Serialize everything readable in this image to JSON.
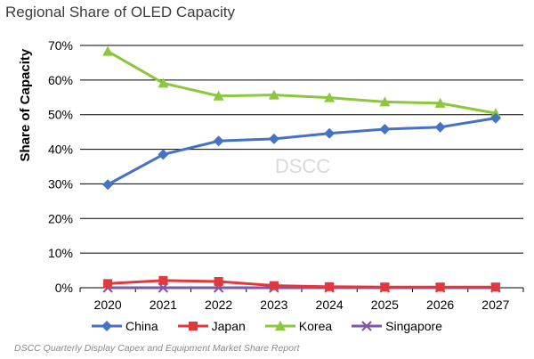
{
  "chart_data": {
    "type": "line",
    "title": "Regional Share of OLED Capacity",
    "ylabel": "Share of Capacity",
    "xlabel": "",
    "categories": [
      "2020",
      "2021",
      "2022",
      "2023",
      "2024",
      "2025",
      "2026",
      "2027"
    ],
    "ylim": [
      0,
      70
    ],
    "yticks": [
      "0%",
      "10%",
      "20%",
      "30%",
      "40%",
      "50%",
      "60%",
      "70%"
    ],
    "grid": true,
    "legend_position": "bottom",
    "watermark": "DSCC",
    "series": [
      {
        "name": "China",
        "color": "#4472C4",
        "marker": "diamond",
        "values": [
          29.8,
          38.5,
          42.4,
          43.0,
          44.6,
          45.8,
          46.4,
          49.0
        ]
      },
      {
        "name": "Japan",
        "color": "#E0383D",
        "marker": "square",
        "values": [
          1.2,
          2.1,
          1.8,
          0.6,
          0.3,
          0.2,
          0.2,
          0.2
        ]
      },
      {
        "name": "Korea",
        "color": "#8DC63F",
        "marker": "triangle",
        "values": [
          68.3,
          59.1,
          55.4,
          55.7,
          54.9,
          53.7,
          53.3,
          50.4
        ]
      },
      {
        "name": "Singapore",
        "color": "#7E57A8",
        "marker": "x",
        "values": [
          0.0,
          0.0,
          0.0,
          0.0,
          0.0,
          0.0,
          0.0,
          0.0
        ]
      }
    ]
  },
  "footnote": "DSCC Quarterly Display Capex and Equipment Market Share Report"
}
